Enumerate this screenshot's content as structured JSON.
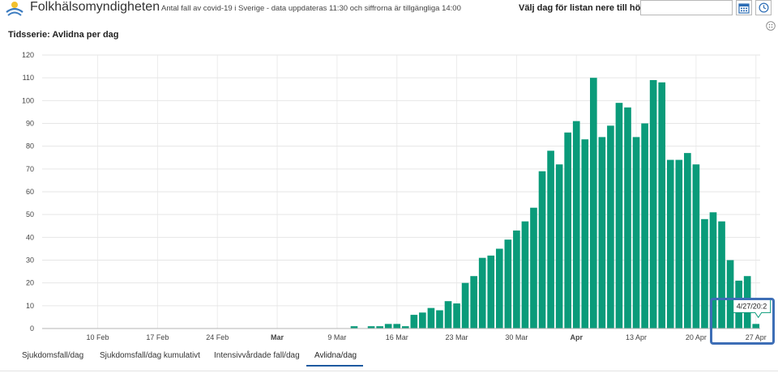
{
  "header": {
    "title": "Folkhälsomyndigheten",
    "subtitle": "Antal fall av covid-19 i Sverige - data uppdateras 11:30 och siffrorna är tillgängliga 14:00",
    "date_label": "Välj dag för listan nere till höger:",
    "date_value": ""
  },
  "series_title": "Tidsserie: Avlidna per dag",
  "tabs": [
    {
      "label": "Sjukdomsfall/dag"
    },
    {
      "label": "Sjukdomsfall/dag kumulativt"
    },
    {
      "label": "Intensivvårdade fall/dag"
    },
    {
      "label": "Avlidna/dag",
      "active": true
    }
  ],
  "tooltip": {
    "text": "4/27/20:2"
  },
  "colors": {
    "bar": "#0a9b7a",
    "highlight": "#3d6eb6",
    "tab_underline": "#1e5aa0"
  },
  "icons": {
    "calendar": "calendar-icon",
    "clock": "clock-icon",
    "options": "options-icon",
    "logo": "logo-icon"
  },
  "chart_data": {
    "type": "bar",
    "title": "Tidsserie: Avlidna per dag",
    "xlabel": "",
    "ylabel": "",
    "ylim": [
      0,
      120
    ],
    "yticks": [
      0,
      10,
      20,
      30,
      40,
      50,
      60,
      70,
      80,
      90,
      100,
      110,
      120
    ],
    "grid": true,
    "x_range": [
      "2020-02-04",
      "2020-04-28"
    ],
    "xticks": [
      {
        "label": "10 Feb",
        "date": "2020-02-10",
        "bold": false
      },
      {
        "label": "17 Feb",
        "date": "2020-02-17",
        "bold": false
      },
      {
        "label": "24 Feb",
        "date": "2020-02-24",
        "bold": false
      },
      {
        "label": "Mar",
        "date": "2020-03-02",
        "bold": true
      },
      {
        "label": "9 Mar",
        "date": "2020-03-09",
        "bold": false
      },
      {
        "label": "16 Mar",
        "date": "2020-03-16",
        "bold": false
      },
      {
        "label": "23 Mar",
        "date": "2020-03-23",
        "bold": false
      },
      {
        "label": "30 Mar",
        "date": "2020-03-30",
        "bold": false
      },
      {
        "label": "Apr",
        "date": "2020-04-06",
        "bold": true
      },
      {
        "label": "13 Apr",
        "date": "2020-04-13",
        "bold": false
      },
      {
        "label": "20 Apr",
        "date": "2020-04-20",
        "bold": false
      },
      {
        "label": "27 Apr",
        "date": "2020-04-27",
        "bold": false
      }
    ],
    "bars": [
      {
        "date": "2020-03-11",
        "value": 1
      },
      {
        "date": "2020-03-12",
        "value": 0
      },
      {
        "date": "2020-03-13",
        "value": 1
      },
      {
        "date": "2020-03-14",
        "value": 1
      },
      {
        "date": "2020-03-15",
        "value": 2
      },
      {
        "date": "2020-03-16",
        "value": 2
      },
      {
        "date": "2020-03-17",
        "value": 1
      },
      {
        "date": "2020-03-18",
        "value": 6
      },
      {
        "date": "2020-03-19",
        "value": 7
      },
      {
        "date": "2020-03-20",
        "value": 9
      },
      {
        "date": "2020-03-21",
        "value": 8
      },
      {
        "date": "2020-03-22",
        "value": 12
      },
      {
        "date": "2020-03-23",
        "value": 11
      },
      {
        "date": "2020-03-24",
        "value": 20
      },
      {
        "date": "2020-03-25",
        "value": 23
      },
      {
        "date": "2020-03-26",
        "value": 31
      },
      {
        "date": "2020-03-27",
        "value": 32
      },
      {
        "date": "2020-03-28",
        "value": 35
      },
      {
        "date": "2020-03-29",
        "value": 39
      },
      {
        "date": "2020-03-30",
        "value": 43
      },
      {
        "date": "2020-03-31",
        "value": 47
      },
      {
        "date": "2020-04-01",
        "value": 53
      },
      {
        "date": "2020-04-02",
        "value": 69
      },
      {
        "date": "2020-04-03",
        "value": 78
      },
      {
        "date": "2020-04-04",
        "value": 72
      },
      {
        "date": "2020-04-05",
        "value": 86
      },
      {
        "date": "2020-04-06",
        "value": 91
      },
      {
        "date": "2020-04-07",
        "value": 83
      },
      {
        "date": "2020-04-08",
        "value": 110
      },
      {
        "date": "2020-04-09",
        "value": 84
      },
      {
        "date": "2020-04-10",
        "value": 89
      },
      {
        "date": "2020-04-11",
        "value": 99
      },
      {
        "date": "2020-04-12",
        "value": 97
      },
      {
        "date": "2020-04-13",
        "value": 84
      },
      {
        "date": "2020-04-14",
        "value": 90
      },
      {
        "date": "2020-04-15",
        "value": 109
      },
      {
        "date": "2020-04-16",
        "value": 108
      },
      {
        "date": "2020-04-17",
        "value": 74
      },
      {
        "date": "2020-04-18",
        "value": 74
      },
      {
        "date": "2020-04-19",
        "value": 77
      },
      {
        "date": "2020-04-20",
        "value": 72
      },
      {
        "date": "2020-04-21",
        "value": 48
      },
      {
        "date": "2020-04-22",
        "value": 51
      },
      {
        "date": "2020-04-23",
        "value": 47
      },
      {
        "date": "2020-04-24",
        "value": 30
      },
      {
        "date": "2020-04-25",
        "value": 21
      },
      {
        "date": "2020-04-26",
        "value": 23
      },
      {
        "date": "2020-04-27",
        "value": 2
      }
    ]
  }
}
